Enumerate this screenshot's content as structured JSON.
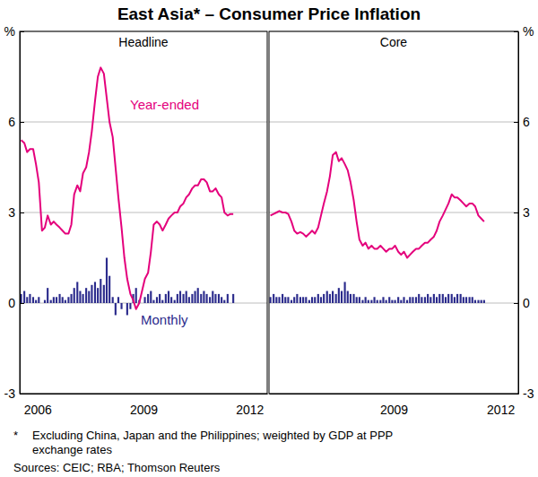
{
  "title": "East Asia* – Consumer Price Inflation",
  "footnote_marker": "*",
  "footnote": [
    "Excluding China, Japan and the Philippines; weighted by GDP at PPP",
    "exchange rates"
  ],
  "source": "Sources: CEIC; RBA; Thomson Reuters",
  "chart_data": [
    {
      "type": "line",
      "title": "Headline",
      "x": [
        2006.04,
        2006.13,
        2006.21,
        2006.29,
        2006.38,
        2006.46,
        2006.54,
        2006.63,
        2006.71,
        2006.79,
        2006.88,
        2006.96,
        2007.04,
        2007.13,
        2007.21,
        2007.29,
        2007.38,
        2007.46,
        2007.54,
        2007.63,
        2007.71,
        2007.79,
        2007.88,
        2007.96,
        2008.04,
        2008.13,
        2008.21,
        2008.29,
        2008.38,
        2008.46,
        2008.54,
        2008.63,
        2008.71,
        2008.79,
        2008.88,
        2008.96,
        2009.04,
        2009.13,
        2009.21,
        2009.29,
        2009.38,
        2009.46,
        2009.54,
        2009.63,
        2009.71,
        2009.79,
        2009.88,
        2009.96,
        2010.04,
        2010.13,
        2010.21,
        2010.29,
        2010.38,
        2010.46,
        2010.54,
        2010.63,
        2010.71,
        2010.79,
        2010.88,
        2010.96,
        2011.04,
        2011.13,
        2011.21,
        2011.29,
        2011.38,
        2011.46,
        2011.54,
        2011.63,
        2011.71,
        2011.79,
        2011.88,
        2011.96,
        2012.04
      ],
      "xlim": [
        2006,
        2013
      ],
      "xticks": [
        {
          "value": 2006.5,
          "label": "2006"
        },
        {
          "value": 2009.5,
          "label": "2009"
        },
        {
          "value": 2012.5,
          "label": "2012"
        }
      ],
      "ylim": [
        -3,
        9
      ],
      "yticks": [
        -3,
        0,
        3,
        6,
        {
          "value": 9,
          "label": "%"
        }
      ],
      "grid": true,
      "series": [
        {
          "name": "Year-ended",
          "type": "line",
          "color": "#e4007c",
          "values": [
            5.4,
            5.3,
            5.0,
            5.1,
            5.1,
            4.6,
            4.0,
            2.4,
            2.5,
            2.9,
            2.6,
            2.7,
            2.6,
            2.5,
            2.4,
            2.3,
            2.3,
            2.6,
            3.6,
            3.9,
            3.7,
            4.3,
            4.5,
            5.0,
            5.7,
            6.7,
            7.5,
            7.8,
            7.6,
            6.8,
            6.0,
            5.5,
            4.5,
            3.5,
            2.5,
            1.5,
            0.8,
            0.3,
            0.1,
            -0.2,
            0.0,
            0.4,
            0.8,
            1.0,
            1.7,
            2.6,
            2.7,
            2.6,
            2.4,
            2.6,
            2.8,
            2.9,
            3.0,
            3.0,
            3.2,
            3.3,
            3.5,
            3.6,
            3.8,
            3.9,
            3.9,
            4.1,
            4.1,
            4.0,
            3.7,
            3.7,
            3.8,
            3.6,
            3.5,
            3.0,
            2.9,
            2.95,
            2.95
          ]
        },
        {
          "name": "Monthly",
          "type": "bar",
          "color": "#2b2b8c",
          "values": [
            0.3,
            0.4,
            0.2,
            0.3,
            0.2,
            0.1,
            0.2,
            0.0,
            0.1,
            0.5,
            0.1,
            0.2,
            0.2,
            0.3,
            0.2,
            0.1,
            0.2,
            0.3,
            0.5,
            0.7,
            0.4,
            0.3,
            0.5,
            0.4,
            0.6,
            0.7,
            0.5,
            0.8,
            0.6,
            1.5,
            0.9,
            0.2,
            -0.4,
            0.2,
            -0.2,
            0.0,
            -0.4,
            -0.2,
            0.3,
            0.5,
            0.1,
            0.0,
            0.2,
            0.3,
            0.4,
            0.1,
            0.2,
            0.3,
            0.1,
            0.3,
            0.4,
            0.2,
            0.1,
            0.3,
            0.4,
            0.3,
            0.4,
            0.2,
            0.3,
            0.4,
            0.5,
            0.3,
            0.4,
            0.3,
            0.2,
            0.4,
            0.3,
            0.3,
            0.2,
            0.1,
            0.3,
            0.0,
            0.3
          ]
        }
      ]
    },
    {
      "type": "line",
      "title": "Core",
      "x": [
        2006.04,
        2006.13,
        2006.21,
        2006.29,
        2006.38,
        2006.46,
        2006.54,
        2006.63,
        2006.71,
        2006.79,
        2006.88,
        2006.96,
        2007.04,
        2007.13,
        2007.21,
        2007.29,
        2007.38,
        2007.46,
        2007.54,
        2007.63,
        2007.71,
        2007.79,
        2007.88,
        2007.96,
        2008.04,
        2008.13,
        2008.21,
        2008.29,
        2008.38,
        2008.46,
        2008.54,
        2008.63,
        2008.71,
        2008.79,
        2008.88,
        2008.96,
        2009.04,
        2009.13,
        2009.21,
        2009.29,
        2009.38,
        2009.46,
        2009.54,
        2009.63,
        2009.71,
        2009.79,
        2009.88,
        2009.96,
        2010.04,
        2010.13,
        2010.21,
        2010.29,
        2010.38,
        2010.46,
        2010.54,
        2010.63,
        2010.71,
        2010.79,
        2010.88,
        2010.96,
        2011.04,
        2011.13,
        2011.21,
        2011.29,
        2011.38,
        2011.46,
        2011.54,
        2011.63,
        2011.71,
        2011.79,
        2011.88,
        2011.96,
        2012.04
      ],
      "xlim": [
        2006,
        2013
      ],
      "xticks": [
        {
          "value": 2009.5,
          "label": "2009"
        },
        {
          "value": 2012.5,
          "label": "2012"
        }
      ],
      "ylim": [
        -3,
        9
      ],
      "yticks": [
        -3,
        0,
        3,
        6,
        {
          "value": 9,
          "label": "%"
        }
      ],
      "grid": true,
      "series": [
        {
          "type": "line",
          "color": "#e4007c",
          "values": [
            2.9,
            2.95,
            3.0,
            3.05,
            3.0,
            3.0,
            2.95,
            2.7,
            2.4,
            2.3,
            2.35,
            2.3,
            2.2,
            2.3,
            2.4,
            2.3,
            2.5,
            2.9,
            3.3,
            3.7,
            4.2,
            4.9,
            5.0,
            4.7,
            4.8,
            4.6,
            4.4,
            4.0,
            3.4,
            2.7,
            2.1,
            1.9,
            2.0,
            1.8,
            1.9,
            1.8,
            1.8,
            1.9,
            1.8,
            1.7,
            1.8,
            1.8,
            1.9,
            1.7,
            1.6,
            1.7,
            1.5,
            1.6,
            1.7,
            1.8,
            1.8,
            1.9,
            2.0,
            2.0,
            2.1,
            2.2,
            2.4,
            2.7,
            2.9,
            3.1,
            3.3,
            3.6,
            3.5,
            3.5,
            3.4,
            3.3,
            3.2,
            3.3,
            3.3,
            3.2,
            2.9,
            2.8,
            2.7
          ]
        },
        {
          "type": "bar",
          "color": "#2b2b8c",
          "values": [
            0.2,
            0.3,
            0.2,
            0.2,
            0.3,
            0.2,
            0.2,
            0.1,
            0.2,
            0.3,
            0.2,
            0.2,
            0.2,
            0.1,
            0.2,
            0.2,
            0.3,
            0.2,
            0.3,
            0.4,
            0.3,
            0.4,
            0.3,
            0.5,
            0.4,
            0.7,
            0.4,
            0.3,
            0.3,
            0.2,
            0.2,
            0.1,
            0.2,
            0.1,
            0.1,
            0.2,
            0.1,
            0.1,
            0.2,
            0.1,
            0.2,
            0.1,
            0.1,
            0.2,
            0.1,
            0.2,
            0.1,
            0.2,
            0.2,
            0.2,
            0.3,
            0.2,
            0.2,
            0.3,
            0.2,
            0.3,
            0.2,
            0.3,
            0.3,
            0.2,
            0.3,
            0.3,
            0.2,
            0.3,
            0.3,
            0.2,
            0.2,
            0.2,
            0.2,
            0.1,
            0.1,
            0.1,
            0.1
          ]
        }
      ]
    }
  ]
}
